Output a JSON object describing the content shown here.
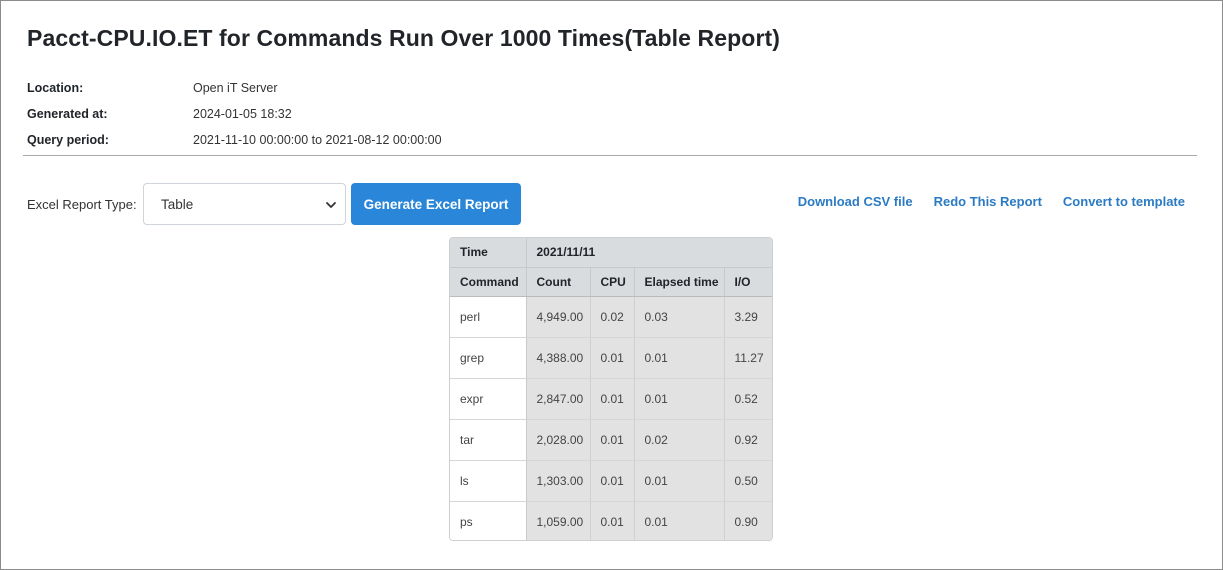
{
  "report": {
    "title": "Pacct-CPU.IO.ET for Commands Run Over 1000 Times(Table Report)",
    "meta": [
      {
        "label": "Location:",
        "value": "Open iT Server"
      },
      {
        "label": "Generated at:",
        "value": "2024-01-05 18:32"
      },
      {
        "label": "Query period:",
        "value": "2021-11-10 00:00:00 to 2021-08-12 00:00:00"
      }
    ]
  },
  "toolbar": {
    "excel_label": "Excel Report Type:",
    "excel_select_value": "Table",
    "generate_label": "Generate Excel Report",
    "links": {
      "download_csv": "Download CSV file",
      "redo": "Redo This Report",
      "convert": "Convert to template"
    }
  },
  "table": {
    "time_header": "Time",
    "date_header": "2021/11/11",
    "columns": [
      "Command",
      "Count",
      "CPU",
      "Elapsed time",
      "I/O"
    ],
    "rows": [
      [
        "perl",
        "4,949.00",
        "0.02",
        "0.03",
        "3.29"
      ],
      [
        "grep",
        "4,388.00",
        "0.01",
        "0.01",
        "11.27"
      ],
      [
        "expr",
        "2,847.00",
        "0.01",
        "0.01",
        "0.52"
      ],
      [
        "tar",
        "2,028.00",
        "0.01",
        "0.02",
        "0.92"
      ],
      [
        "ls",
        "1,303.00",
        "0.01",
        "0.01",
        "0.50"
      ],
      [
        "ps",
        "1,059.00",
        "0.01",
        "0.01",
        "0.90"
      ]
    ]
  },
  "icons": {
    "select_chevron": "chevron-down-icon"
  }
}
